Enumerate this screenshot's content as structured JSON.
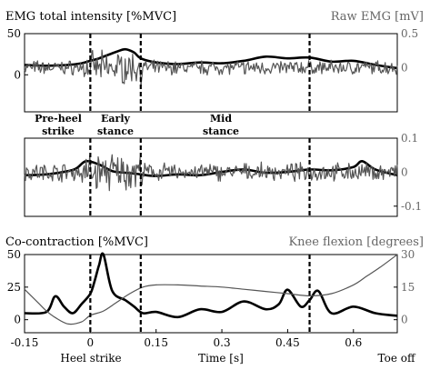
{
  "figure": {
    "panel1_left_label": "EMG total intensity [%MVC]",
    "panel1_right_label": "Raw EMG [mV]",
    "panel3_left_label": "Co-contraction [%MVC]",
    "panel3_right_label": "Knee flexion [degrees]",
    "x_label": "Time [s]",
    "heel_strike_label": "Heel strike",
    "toe_off_label": "Toe off",
    "phase_labels": {
      "pre_heel_strike": [
        "Pre-heel",
        "strike"
      ],
      "early_stance": [
        "Early",
        "stance"
      ],
      "mid_stance": [
        "Mid",
        "stance"
      ]
    },
    "phase_boundaries_s": [
      0,
      0.115,
      0.5
    ]
  },
  "chart_data": [
    {
      "type": "line",
      "title": "",
      "xlim": [
        -0.15,
        0.7
      ],
      "ylim_left": [
        -45,
        50
      ],
      "ylim_right": [
        -0.65,
        0.5
      ],
      "left_ticks": [
        0,
        50
      ],
      "right_ticks": [
        0,
        0.5
      ],
      "series": [
        {
          "name": "EMG total intensity",
          "axis": "left",
          "color": "#000000",
          "x": [
            -0.15,
            -0.1,
            -0.05,
            -0.02,
            0,
            0.02,
            0.04,
            0.06,
            0.08,
            0.1,
            0.115,
            0.15,
            0.2,
            0.25,
            0.3,
            0.35,
            0.4,
            0.45,
            0.5,
            0.55,
            0.6,
            0.65,
            0.7
          ],
          "y": [
            12,
            11,
            12,
            14,
            17,
            20,
            24,
            28,
            31,
            27,
            20,
            15,
            13,
            15,
            14,
            17,
            22,
            20,
            21,
            16,
            17,
            12,
            8
          ]
        },
        {
          "name": "Raw EMG",
          "axis": "right",
          "color": "#555555",
          "raw": true,
          "amplitude": 0.12
        }
      ]
    },
    {
      "type": "line",
      "title": "",
      "xlim": [
        -0.15,
        0.7
      ],
      "ylim_left": [
        -45,
        50
      ],
      "ylim_right": [
        -0.13,
        0.1
      ],
      "right_ticks": [
        -0.1,
        0,
        0.1
      ],
      "series": [
        {
          "name": "EMG total intensity",
          "axis": "left",
          "color": "#000000",
          "x": [
            -0.15,
            -0.1,
            -0.05,
            -0.03,
            -0.01,
            0.02,
            0.05,
            0.08,
            0.1,
            0.115,
            0.15,
            0.2,
            0.25,
            0.3,
            0.35,
            0.4,
            0.45,
            0.5,
            0.55,
            0.6,
            0.62,
            0.65,
            0.7
          ],
          "y": [
            5,
            6,
            10,
            14,
            22,
            18,
            10,
            8,
            7,
            6,
            4,
            6,
            5,
            9,
            12,
            8,
            9,
            12,
            11,
            15,
            22,
            12,
            5
          ]
        },
        {
          "name": "Raw EMG",
          "axis": "right",
          "color": "#555555",
          "raw": true,
          "amplitude": 0.03
        }
      ]
    },
    {
      "type": "line",
      "title": "",
      "xlim": [
        -0.15,
        0.7
      ],
      "ylim_left": [
        -10,
        50
      ],
      "ylim_right": [
        -6,
        30
      ],
      "left_ticks": [
        0,
        25,
        50
      ],
      "right_ticks": [
        0,
        15,
        30
      ],
      "x_ticks": [
        -0.15,
        0,
        0.15,
        0.3,
        0.45,
        0.6
      ],
      "x_tick_labels": [
        "-0.15",
        "0",
        "0.15",
        "0.3",
        "0.45",
        "0.6"
      ],
      "series": [
        {
          "name": "Co-contraction",
          "axis": "left",
          "color": "#000000",
          "x": [
            -0.15,
            -0.1,
            -0.08,
            -0.06,
            -0.04,
            -0.02,
            0,
            0.01,
            0.02,
            0.03,
            0.05,
            0.08,
            0.1,
            0.12,
            0.15,
            0.2,
            0.25,
            0.3,
            0.35,
            0.4,
            0.43,
            0.45,
            0.48,
            0.5,
            0.52,
            0.55,
            0.6,
            0.65,
            0.7
          ],
          "y": [
            5,
            6,
            18,
            10,
            5,
            12,
            20,
            30,
            42,
            50,
            22,
            15,
            10,
            5,
            6,
            2,
            8,
            6,
            14,
            8,
            12,
            23,
            10,
            15,
            22,
            5,
            10,
            5,
            3
          ]
        },
        {
          "name": "Knee flexion",
          "axis": "right",
          "color": "#555555",
          "x": [
            -0.15,
            -0.12,
            -0.1,
            -0.08,
            -0.05,
            -0.02,
            0,
            0.03,
            0.06,
            0.09,
            0.12,
            0.15,
            0.2,
            0.25,
            0.3,
            0.35,
            0.4,
            0.45,
            0.5,
            0.55,
            0.6,
            0.63,
            0.66,
            0.7
          ],
          "y": [
            14,
            8,
            4,
            1,
            -2,
            -1,
            2,
            4,
            8,
            12,
            15,
            16,
            16,
            15.5,
            15,
            14,
            13,
            12,
            11,
            12,
            16,
            20,
            24,
            30
          ]
        }
      ]
    }
  ]
}
